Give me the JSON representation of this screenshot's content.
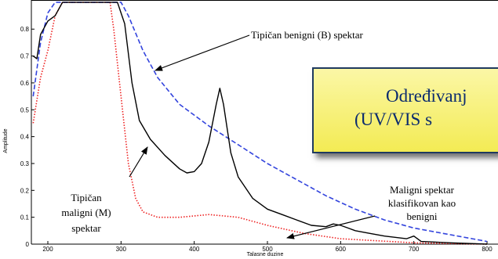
{
  "chart_data": {
    "type": "line",
    "xlabel": "Talasne duzine",
    "ylabel": "Amplitude",
    "xlim": [
      180,
      800
    ],
    "ylim": [
      0,
      0.9
    ],
    "x_ticks": [
      200,
      300,
      400,
      500,
      600,
      700,
      800
    ],
    "y_ticks": [
      0,
      0.1,
      0.2,
      0.3,
      0.4,
      0.5,
      0.6,
      0.7,
      0.8
    ],
    "y_tick_labels": [
      "0",
      "0.1",
      "0.2",
      "0.3",
      "0.4",
      "0.5",
      "0.6",
      "0.7",
      "0.8"
    ],
    "series": [
      {
        "name": "Tipičan benigni (B) spektar",
        "color": "#3344dd",
        "style": "dashed",
        "points": [
          [
            180,
            0.55
          ],
          [
            190,
            0.75
          ],
          [
            200,
            0.86
          ],
          [
            210,
            0.9
          ],
          [
            300,
            0.9
          ],
          [
            310,
            0.85
          ],
          [
            330,
            0.72
          ],
          [
            350,
            0.62
          ],
          [
            380,
            0.52
          ],
          [
            420,
            0.44
          ],
          [
            460,
            0.37
          ],
          [
            500,
            0.3
          ],
          [
            540,
            0.24
          ],
          [
            580,
            0.18
          ],
          [
            620,
            0.13
          ],
          [
            660,
            0.09
          ],
          [
            700,
            0.06
          ],
          [
            740,
            0.04
          ],
          [
            780,
            0.02
          ],
          [
            800,
            0.01
          ]
        ]
      },
      {
        "name": "Tipičan maligni (M) spektar",
        "color": "#ee2222",
        "style": "dotted",
        "points": [
          [
            180,
            0.45
          ],
          [
            190,
            0.62
          ],
          [
            200,
            0.72
          ],
          [
            210,
            0.85
          ],
          [
            220,
            0.9
          ],
          [
            285,
            0.9
          ],
          [
            290,
            0.8
          ],
          [
            300,
            0.55
          ],
          [
            310,
            0.3
          ],
          [
            320,
            0.17
          ],
          [
            330,
            0.12
          ],
          [
            350,
            0.1
          ],
          [
            380,
            0.1
          ],
          [
            420,
            0.11
          ],
          [
            460,
            0.1
          ],
          [
            500,
            0.07
          ],
          [
            550,
            0.04
          ],
          [
            600,
            0.02
          ],
          [
            700,
            0.005
          ],
          [
            800,
            0.0
          ]
        ]
      },
      {
        "name": "Maligni spektar klasifikovan kao benigni",
        "color": "#000000",
        "style": "solid",
        "points": [
          [
            180,
            0.7
          ],
          [
            185,
            0.69
          ],
          [
            190,
            0.78
          ],
          [
            200,
            0.83
          ],
          [
            210,
            0.85
          ],
          [
            220,
            0.9
          ],
          [
            295,
            0.9
          ],
          [
            305,
            0.82
          ],
          [
            315,
            0.6
          ],
          [
            325,
            0.46
          ],
          [
            340,
            0.39
          ],
          [
            360,
            0.33
          ],
          [
            380,
            0.28
          ],
          [
            390,
            0.265
          ],
          [
            400,
            0.27
          ],
          [
            410,
            0.3
          ],
          [
            420,
            0.38
          ],
          [
            430,
            0.52
          ],
          [
            435,
            0.58
          ],
          [
            440,
            0.52
          ],
          [
            450,
            0.34
          ],
          [
            460,
            0.25
          ],
          [
            480,
            0.17
          ],
          [
            500,
            0.13
          ],
          [
            520,
            0.11
          ],
          [
            540,
            0.09
          ],
          [
            560,
            0.07
          ],
          [
            580,
            0.065
          ],
          [
            590,
            0.075
          ],
          [
            600,
            0.07
          ],
          [
            610,
            0.06
          ],
          [
            620,
            0.05
          ],
          [
            640,
            0.04
          ],
          [
            660,
            0.03
          ],
          [
            690,
            0.02
          ],
          [
            700,
            0.03
          ],
          [
            710,
            0.01
          ],
          [
            750,
            0.005
          ],
          [
            800,
            0.0
          ]
        ]
      }
    ],
    "annotations": [
      {
        "lines": [
          "Tipičan benigni (B) spektar"
        ]
      },
      {
        "lines": [
          "Tipičan",
          "maligni (M)",
          "spektar"
        ]
      },
      {
        "lines": [
          "Maligni spektar",
          "klasifikovan kao",
          "benigni"
        ]
      }
    ],
    "grid": false
  },
  "banner": {
    "line1": "Određivanj",
    "line2": "(UV/VIS s"
  }
}
